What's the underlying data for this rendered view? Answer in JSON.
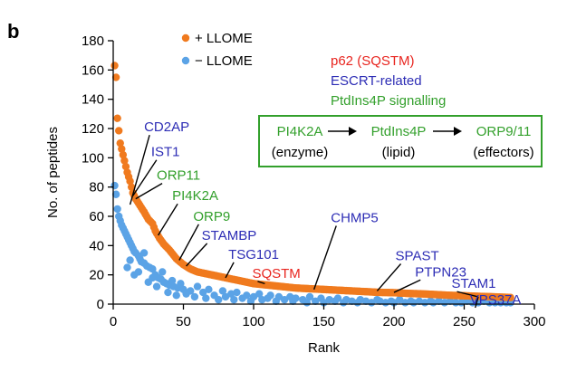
{
  "panel_letter": "b",
  "colors": {
    "plus": "#f07a1e",
    "minus": "#5ba3e6",
    "red": "#e8251f",
    "blue": "#2d2db5",
    "green": "#33a02c",
    "box": "#33a02c"
  },
  "category_legend": [
    {
      "text": "p62 (SQSTM)",
      "color": "red"
    },
    {
      "text": "ESCRT-related",
      "color": "blue"
    },
    {
      "text": "PtdIns4P signalling",
      "color": "green"
    }
  ],
  "pathway": {
    "steps": [
      {
        "name": "PI4K2A",
        "role": "(enzyme)"
      },
      {
        "name": "PtdIns4P",
        "role": "(lipid)"
      },
      {
        "name": "ORP9/11",
        "role": "(effectors)"
      }
    ],
    "arrow": "→"
  },
  "chart_data": {
    "type": "scatter",
    "xlabel": "Rank",
    "ylabel": "No. of peptides",
    "xlim": [
      0,
      300
    ],
    "ylim": [
      0,
      180
    ],
    "xticks": [
      0,
      50,
      100,
      150,
      200,
      250,
      300
    ],
    "yticks": [
      0,
      20,
      40,
      60,
      80,
      100,
      120,
      140,
      160,
      180
    ],
    "grid": false,
    "legend_position": "top",
    "series": [
      {
        "name": "+ LLOME",
        "color_key": "plus",
        "curve": [
          [
            1,
            163
          ],
          [
            2,
            155
          ],
          [
            3,
            127
          ],
          [
            5,
            110
          ],
          [
            6,
            106
          ],
          [
            8,
            98
          ],
          [
            10,
            90
          ],
          [
            12,
            84
          ],
          [
            14,
            76
          ],
          [
            16,
            72
          ],
          [
            18,
            69
          ],
          [
            20,
            66
          ],
          [
            22,
            63
          ],
          [
            25,
            58
          ],
          [
            28,
            55
          ],
          [
            30,
            50
          ],
          [
            33,
            45
          ],
          [
            36,
            41
          ],
          [
            40,
            37
          ],
          [
            45,
            31
          ],
          [
            50,
            27
          ],
          [
            55,
            24
          ],
          [
            60,
            22
          ],
          [
            70,
            20
          ],
          [
            80,
            18
          ],
          [
            90,
            16
          ],
          [
            100,
            14
          ],
          [
            110,
            13
          ],
          [
            120,
            12
          ],
          [
            130,
            11
          ],
          [
            140,
            10.5
          ],
          [
            150,
            10
          ],
          [
            160,
            9.5
          ],
          [
            170,
            9
          ],
          [
            180,
            8.5
          ],
          [
            190,
            8
          ],
          [
            200,
            7.8
          ],
          [
            210,
            7.3
          ],
          [
            220,
            7
          ],
          [
            230,
            6.5
          ],
          [
            240,
            6
          ],
          [
            250,
            5.7
          ],
          [
            260,
            5.3
          ],
          [
            270,
            5
          ],
          [
            283,
            4.5
          ]
        ],
        "n_points": 283
      },
      {
        "name": "− LLOME",
        "color_key": "minus",
        "points": [
          [
            1,
            81
          ],
          [
            2,
            75
          ],
          [
            3,
            65
          ],
          [
            4,
            60
          ],
          [
            5,
            57
          ],
          [
            6,
            54
          ],
          [
            7,
            52
          ],
          [
            8,
            50
          ],
          [
            9,
            48
          ],
          [
            10,
            46
          ],
          [
            11,
            44
          ],
          [
            12,
            42
          ],
          [
            13,
            40
          ],
          [
            14,
            38
          ],
          [
            15,
            36
          ],
          [
            16,
            35
          ],
          [
            18,
            33
          ],
          [
            19,
            31
          ],
          [
            20,
            29
          ],
          [
            22,
            28
          ],
          [
            24,
            26
          ],
          [
            26,
            25
          ],
          [
            28,
            24
          ],
          [
            30,
            20
          ],
          [
            32,
            18
          ],
          [
            34,
            17
          ],
          [
            36,
            15
          ],
          [
            38,
            14
          ],
          [
            40,
            13
          ],
          [
            43,
            12
          ],
          [
            46,
            11
          ],
          [
            50,
            10
          ],
          [
            10,
            25
          ],
          [
            12,
            30
          ],
          [
            15,
            20
          ],
          [
            18,
            22
          ],
          [
            22,
            35
          ],
          [
            25,
            15
          ],
          [
            28,
            18
          ],
          [
            31,
            12
          ],
          [
            35,
            22
          ],
          [
            39,
            8
          ],
          [
            42,
            16
          ],
          [
            45,
            6
          ],
          [
            48,
            14
          ],
          [
            52,
            7
          ],
          [
            55,
            9
          ],
          [
            58,
            5
          ],
          [
            60,
            12
          ],
          [
            64,
            8
          ],
          [
            66,
            4
          ],
          [
            68,
            10
          ],
          [
            72,
            6
          ],
          [
            75,
            3
          ],
          [
            78,
            9
          ],
          [
            80,
            5
          ],
          [
            84,
            7
          ],
          [
            86,
            3
          ],
          [
            88,
            8
          ],
          [
            92,
            4
          ],
          [
            95,
            6
          ],
          [
            98,
            2
          ],
          [
            100,
            5
          ],
          [
            104,
            7
          ],
          [
            106,
            3
          ],
          [
            110,
            4
          ],
          [
            112,
            6
          ],
          [
            116,
            2
          ],
          [
            118,
            5
          ],
          [
            122,
            3
          ],
          [
            126,
            5
          ],
          [
            128,
            2
          ],
          [
            130,
            4
          ],
          [
            135,
            3
          ],
          [
            138,
            1
          ],
          [
            140,
            5
          ],
          [
            144,
            2
          ],
          [
            148,
            4
          ],
          [
            150,
            1
          ],
          [
            154,
            3
          ],
          [
            158,
            2
          ],
          [
            160,
            4
          ],
          [
            164,
            1
          ],
          [
            166,
            3
          ],
          [
            170,
            2
          ],
          [
            174,
            1
          ],
          [
            176,
            3
          ],
          [
            180,
            2
          ],
          [
            184,
            1
          ],
          [
            188,
            3
          ],
          [
            190,
            2
          ],
          [
            194,
            1
          ],
          [
            198,
            2
          ],
          [
            200,
            1
          ],
          [
            204,
            3
          ],
          [
            208,
            1
          ],
          [
            212,
            2
          ],
          [
            214,
            1
          ],
          [
            218,
            2
          ],
          [
            222,
            1
          ],
          [
            226,
            2
          ],
          [
            228,
            1
          ],
          [
            232,
            2
          ],
          [
            236,
            1
          ],
          [
            240,
            2
          ],
          [
            244,
            1
          ],
          [
            248,
            1
          ],
          [
            252,
            2
          ],
          [
            256,
            1
          ],
          [
            260,
            1
          ],
          [
            264,
            2
          ],
          [
            268,
            1
          ],
          [
            272,
            1
          ],
          [
            276,
            1
          ],
          [
            280,
            1
          ],
          [
            283,
            1
          ]
        ]
      }
    ],
    "annotations": [
      {
        "label": "CD2AP",
        "color": "blue",
        "x": 12,
        "y": 68,
        "label_x": 22,
        "label_y": 118,
        "anchor": "start"
      },
      {
        "label": "IST1",
        "color": "blue",
        "x": 14,
        "y": 74,
        "label_x": 27,
        "label_y": 101,
        "anchor": "start"
      },
      {
        "label": "ORP11",
        "color": "green",
        "x": 16,
        "y": 72,
        "label_x": 31,
        "label_y": 85,
        "anchor": "start"
      },
      {
        "label": "PI4K2A",
        "color": "green",
        "x": 32,
        "y": 47,
        "label_x": 42,
        "label_y": 71,
        "anchor": "start"
      },
      {
        "label": "ORP9",
        "color": "green",
        "x": 47,
        "y": 30,
        "label_x": 57,
        "label_y": 57,
        "anchor": "start"
      },
      {
        "label": "STAMBP",
        "color": "blue",
        "x": 52,
        "y": 26,
        "label_x": 63,
        "label_y": 44,
        "anchor": "start"
      },
      {
        "label": "TSG101",
        "color": "blue",
        "x": 80,
        "y": 18,
        "label_x": 82,
        "label_y": 31,
        "anchor": "start"
      },
      {
        "label": "SQSTM",
        "color": "red",
        "x": 108,
        "y": 14,
        "label_x": 99,
        "label_y": 18,
        "anchor": "start"
      },
      {
        "label": "CHMP5",
        "color": "blue",
        "x": 143,
        "y": 10,
        "label_x": 155,
        "label_y": 56,
        "anchor": "start"
      },
      {
        "label": "SPAST",
        "color": "blue",
        "x": 188,
        "y": 9,
        "label_x": 201,
        "label_y": 30,
        "anchor": "start"
      },
      {
        "label": "PTPN23",
        "color": "blue",
        "x": 200,
        "y": 8,
        "label_x": 215,
        "label_y": 19,
        "anchor": "start"
      },
      {
        "label": "STAM1",
        "color": "blue",
        "x": 260,
        "y": 5,
        "label_x": 241,
        "label_y": 11,
        "anchor": "start"
      },
      {
        "label": "VPS37A",
        "color": "blue",
        "x": 260,
        "y": 5,
        "label_x": 254,
        "label_y": 0,
        "anchor": "start"
      }
    ]
  }
}
